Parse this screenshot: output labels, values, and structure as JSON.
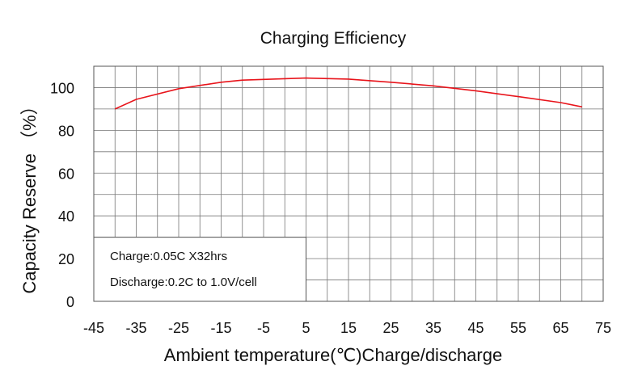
{
  "chart_data": {
    "type": "line",
    "title": "Charging Efficiency",
    "xlabel": "Ambient temperature(℃)Charge/discharge",
    "ylabel": "Capacity Reserve （%）",
    "xlim": [
      -45,
      75
    ],
    "ylim": [
      0,
      110
    ],
    "xticks": [
      -45,
      -35,
      -25,
      -15,
      -5,
      5,
      15,
      25,
      35,
      45,
      55,
      65,
      75
    ],
    "yticks": [
      0,
      20,
      40,
      60,
      80,
      100
    ],
    "grid": true,
    "series": [
      {
        "color": "#e8141b",
        "x": [
          -40,
          -35,
          -25,
          -15,
          -10,
          5,
          15,
          25,
          35,
          45,
          55,
          65,
          70
        ],
        "y": [
          90,
          94.5,
          99.5,
          102.5,
          103.5,
          104.5,
          104,
          102.5,
          100.8,
          98.5,
          95.8,
          93,
          91
        ]
      }
    ],
    "annotations": [
      "Charge:0.05C X32hrs",
      "Discharge:0.2C to 1.0V/cell"
    ]
  }
}
